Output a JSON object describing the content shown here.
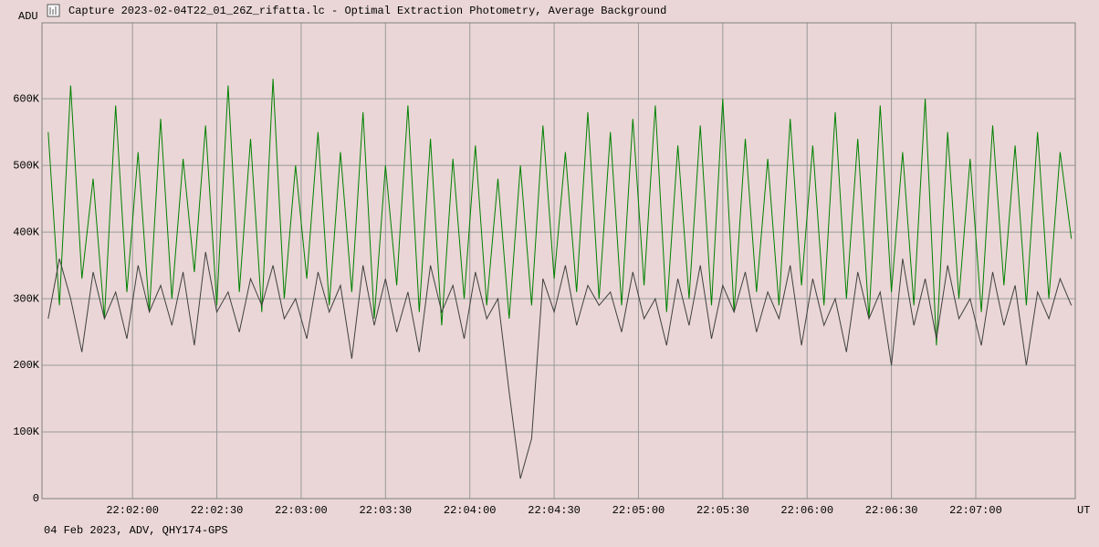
{
  "chart_data": {
    "type": "line",
    "title": "Capture 2023-02-04T22_01_26Z_rifatta.lc - Optimal Extraction Photometry, Average Background",
    "ylabel": "ADU",
    "xlabel": "UT",
    "footer": "04 Feb 2023, ADV, QHY174-GPS",
    "x": [
      79290,
      79294,
      79298,
      79302,
      79306,
      79310,
      79314,
      79318,
      79322,
      79326,
      79330,
      79334,
      79338,
      79342,
      79346,
      79350,
      79354,
      79358,
      79362,
      79366,
      79370,
      79374,
      79378,
      79382,
      79386,
      79390,
      79394,
      79398,
      79402,
      79406,
      79410,
      79414,
      79418,
      79422,
      79426,
      79430,
      79434,
      79438,
      79442,
      79446,
      79450,
      79454,
      79458,
      79462,
      79466,
      79470,
      79474,
      79478,
      79482,
      79486,
      79490,
      79494,
      79498,
      79502,
      79506,
      79510,
      79514,
      79518,
      79522,
      79526,
      79530,
      79534,
      79538,
      79542,
      79546,
      79550,
      79554,
      79558,
      79562,
      79566,
      79570,
      79574,
      79578,
      79582,
      79586,
      79590,
      79594,
      79598,
      79602,
      79606,
      79610,
      79614,
      79618,
      79622,
      79626,
      79630,
      79634,
      79638,
      79642,
      79646,
      79650,
      79654
    ],
    "series": [
      {
        "color": "#008000",
        "values": [
          550000,
          290000,
          620000,
          330000,
          480000,
          270000,
          590000,
          310000,
          520000,
          280000,
          570000,
          300000,
          510000,
          340000,
          560000,
          290000,
          620000,
          310000,
          540000,
          280000,
          630000,
          300000,
          500000,
          330000,
          550000,
          290000,
          520000,
          310000,
          580000,
          270000,
          500000,
          320000,
          590000,
          280000,
          540000,
          260000,
          510000,
          300000,
          530000,
          290000,
          480000,
          270000,
          500000,
          290000,
          560000,
          330000,
          520000,
          310000,
          580000,
          300000,
          550000,
          290000,
          570000,
          320000,
          590000,
          280000,
          530000,
          300000,
          560000,
          290000,
          600000,
          280000,
          540000,
          310000,
          510000,
          290000,
          570000,
          320000,
          530000,
          290000,
          580000,
          300000,
          540000,
          270000,
          590000,
          310000,
          520000,
          290000,
          600000,
          230000,
          550000,
          300000,
          510000,
          280000,
          560000,
          320000,
          530000,
          290000,
          550000,
          300000,
          520000,
          390000
        ]
      },
      {
        "color": "#404040",
        "values": [
          270000,
          360000,
          300000,
          220000,
          340000,
          270000,
          310000,
          240000,
          350000,
          280000,
          320000,
          260000,
          340000,
          230000,
          370000,
          280000,
          310000,
          250000,
          330000,
          290000,
          350000,
          270000,
          300000,
          240000,
          340000,
          280000,
          320000,
          210000,
          350000,
          260000,
          330000,
          250000,
          310000,
          220000,
          350000,
          280000,
          320000,
          240000,
          340000,
          270000,
          300000,
          160000,
          30000,
          90000,
          330000,
          280000,
          350000,
          260000,
          320000,
          290000,
          310000,
          250000,
          340000,
          270000,
          300000,
          230000,
          330000,
          260000,
          350000,
          240000,
          320000,
          280000,
          340000,
          250000,
          310000,
          270000,
          350000,
          230000,
          330000,
          260000,
          300000,
          220000,
          340000,
          270000,
          310000,
          200000,
          360000,
          260000,
          330000,
          240000,
          350000,
          270000,
          300000,
          230000,
          340000,
          260000,
          320000,
          200000,
          310000,
          270000,
          330000,
          290000
        ]
      }
    ],
    "xlim": [
      79287.8,
      79655.4
    ],
    "xticks": [
      {
        "value": 79320,
        "label": "22:02:00"
      },
      {
        "value": 79350,
        "label": "22:02:30"
      },
      {
        "value": 79380,
        "label": "22:03:00"
      },
      {
        "value": 79410,
        "label": "22:03:30"
      },
      {
        "value": 79440,
        "label": "22:04:00"
      },
      {
        "value": 79470,
        "label": "22:04:30"
      },
      {
        "value": 79500,
        "label": "22:05:00"
      },
      {
        "value": 79530,
        "label": "22:05:30"
      },
      {
        "value": 79560,
        "label": "22:06:00"
      },
      {
        "value": 79590,
        "label": "22:06:30"
      },
      {
        "value": 79620,
        "label": "22:07:00"
      }
    ],
    "ylim": [
      0,
      714000
    ],
    "yticks": [
      0,
      {
        "value": 100000,
        "label": "100K"
      },
      {
        "value": 200000,
        "label": "200K"
      },
      {
        "value": 300000,
        "label": "300K"
      },
      {
        "value": 400000,
        "label": "400K"
      },
      {
        "value": 500000,
        "label": "500K"
      },
      {
        "value": 600000,
        "label": "600K"
      }
    ],
    "grid": true
  }
}
